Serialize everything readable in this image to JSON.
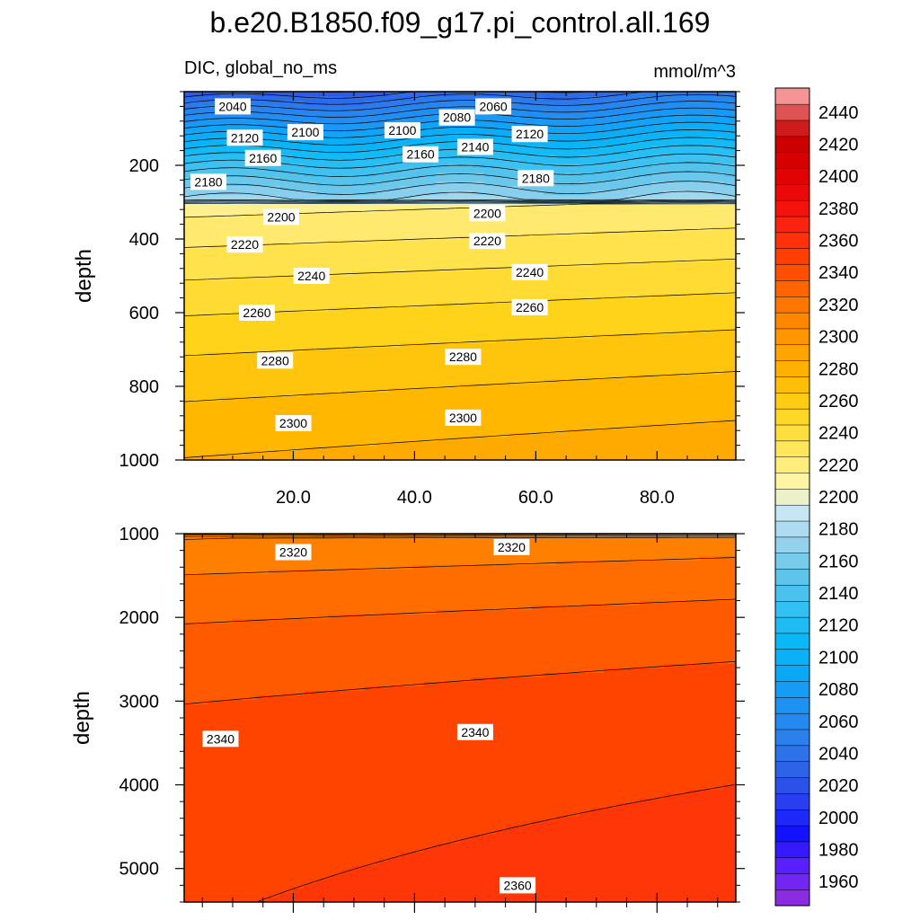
{
  "chart_data": {
    "type": "contour",
    "title": "b.e20.B1850.f09_g17.pi_control.all.169",
    "variable_label": "DIC, global_no_ms",
    "units": "mmol/m^3",
    "x_axis": {
      "ticks": [
        20,
        40,
        60,
        80
      ],
      "tick_labels": [
        "20.0",
        "40.0",
        "60.0",
        "80.0"
      ],
      "range": [
        2,
        93
      ]
    },
    "colorbar": {
      "ticks": [
        2440,
        2420,
        2400,
        2380,
        2360,
        2340,
        2320,
        2300,
        2280,
        2260,
        2240,
        2220,
        2200,
        2180,
        2160,
        2140,
        2120,
        2100,
        2080,
        2060,
        2040,
        2020,
        2000,
        1980,
        1960
      ],
      "levels_interval": 10,
      "range": [
        1945,
        2455
      ]
    },
    "panels": [
      {
        "name": "upper",
        "ylabel": "depth",
        "y_range": [
          0,
          1000
        ],
        "y_ticks": [
          200,
          400,
          600,
          800,
          1000
        ],
        "y_tick_labels": [
          "200",
          "400",
          "600",
          "800",
          "1000"
        ],
        "contour_labels": [
          {
            "value": "2040",
            "x": 10,
            "depth": 40
          },
          {
            "value": "2060",
            "x": 53,
            "depth": 40
          },
          {
            "value": "2080",
            "x": 47,
            "depth": 70
          },
          {
            "value": "2100",
            "x": 22,
            "depth": 110
          },
          {
            "value": "2100",
            "x": 38,
            "depth": 105
          },
          {
            "value": "2120",
            "x": 12,
            "depth": 125
          },
          {
            "value": "2120",
            "x": 59,
            "depth": 115
          },
          {
            "value": "2140",
            "x": 50,
            "depth": 150
          },
          {
            "value": "2160",
            "x": 15,
            "depth": 180
          },
          {
            "value": "2160",
            "x": 41,
            "depth": 170
          },
          {
            "value": "2180",
            "x": 6,
            "depth": 245
          },
          {
            "value": "2180",
            "x": 60,
            "depth": 235
          },
          {
            "value": "2200",
            "x": 18,
            "depth": 340
          },
          {
            "value": "2200",
            "x": 52,
            "depth": 330
          },
          {
            "value": "2220",
            "x": 12,
            "depth": 415
          },
          {
            "value": "2220",
            "x": 52,
            "depth": 405
          },
          {
            "value": "2240",
            "x": 23,
            "depth": 500
          },
          {
            "value": "2240",
            "x": 59,
            "depth": 490
          },
          {
            "value": "2260",
            "x": 14,
            "depth": 600
          },
          {
            "value": "2260",
            "x": 59,
            "depth": 585
          },
          {
            "value": "2280",
            "x": 17,
            "depth": 730
          },
          {
            "value": "2280",
            "x": 48,
            "depth": 720
          },
          {
            "value": "2300",
            "x": 20,
            "depth": 900
          },
          {
            "value": "2300",
            "x": 48,
            "depth": 885
          }
        ]
      },
      {
        "name": "lower",
        "ylabel": "depth",
        "y_range": [
          1000,
          5400
        ],
        "y_ticks": [
          1000,
          2000,
          3000,
          4000,
          5000
        ],
        "y_tick_labels": [
          "1000",
          "2000",
          "3000",
          "4000",
          "5000"
        ],
        "contour_labels": [
          {
            "value": "2320",
            "x": 20,
            "depth": 1220
          },
          {
            "value": "2320",
            "x": 56,
            "depth": 1160
          },
          {
            "value": "2340",
            "x": 8,
            "depth": 3450
          },
          {
            "value": "2340",
            "x": 50,
            "depth": 3370
          },
          {
            "value": "2360",
            "x": 57,
            "depth": 5200
          }
        ]
      }
    ]
  }
}
